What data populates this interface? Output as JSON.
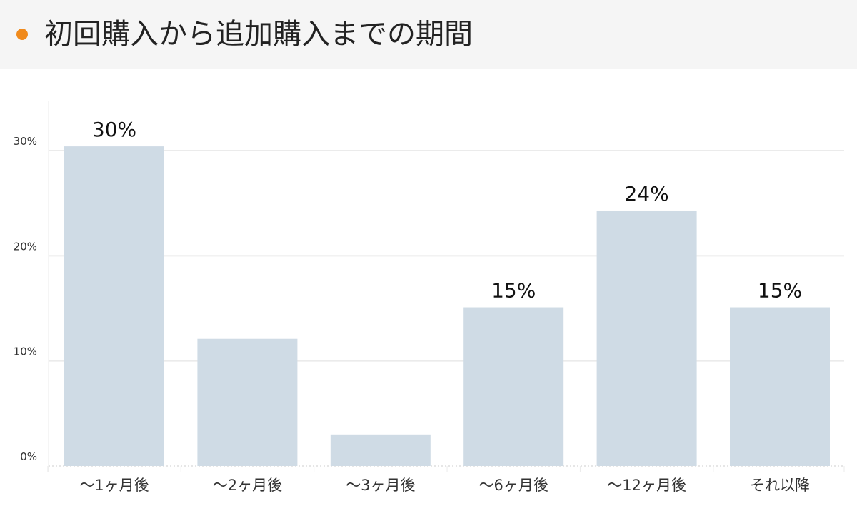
{
  "title": "初回購入から追加購入までの期間",
  "colors": {
    "accent_dot": "#f08a1c",
    "bar": "#cfdbe5",
    "grid": "#ebebeb",
    "axis_text": "#333333",
    "label_text": "#111111"
  },
  "chart_data": {
    "type": "bar",
    "title": "初回購入から追加購入までの期間",
    "xlabel": "",
    "ylabel": "",
    "categories": [
      "〜1ヶ月後",
      "〜2ヶ月後",
      "〜3ヶ月後",
      "〜6ヶ月後",
      "〜12ヶ月後",
      "それ以降"
    ],
    "values": [
      30.4,
      12.1,
      3.0,
      15.1,
      24.3,
      15.1
    ],
    "data_labels": [
      "30%",
      "",
      "",
      "15%",
      "24%",
      "15%"
    ],
    "y_ticks": [
      0,
      10,
      20,
      30
    ],
    "y_tick_labels": [
      "0%",
      "10%",
      "20%",
      "30%"
    ],
    "ylim": [
      0,
      35
    ],
    "grid": true,
    "legend": "none"
  }
}
